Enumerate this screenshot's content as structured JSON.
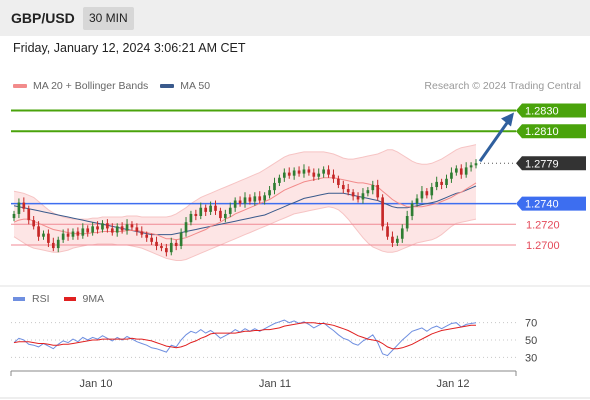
{
  "header": {
    "symbol": "GBP/USD",
    "interval": "30 MIN"
  },
  "datetime": "Friday, January 12, 2024 3:06:21 AM CET",
  "legend": {
    "ma_bb_label": "MA 20 + Bollinger Bands",
    "ma50_label": "MA 50",
    "credit": "Research © 2024 Trading Central"
  },
  "rsi_legend": {
    "rsi_label": "RSI",
    "ma_label": "9MA"
  },
  "colors": {
    "green": "#4aa30b",
    "blue": "#3d6ef0",
    "red": "#e44a5a",
    "bb_fill": "#fde5e5",
    "candle_up": "#2e7d32",
    "candle_down": "#c62828",
    "price_tag": "#333333",
    "ma50": "#3a5a8c",
    "rsi_line": "#6f8fe0",
    "rsi_ma": "#e02020",
    "arrow": "#2f5f9e"
  },
  "chart_data": [
    {
      "type": "candlestick",
      "x_ticks": [
        "Jan 10",
        "Jan 11",
        "Jan 12"
      ],
      "ylim": [
        1.267,
        1.2845
      ],
      "levels": [
        {
          "value": 1.283,
          "label": "1.2830",
          "kind": "resistance"
        },
        {
          "value": 1.281,
          "label": "1.2810",
          "kind": "resistance"
        },
        {
          "value": 1.2779,
          "label": "1.2779",
          "kind": "last"
        },
        {
          "value": 1.274,
          "label": "1.2740",
          "kind": "pivot"
        },
        {
          "value": 1.272,
          "label": "1.2720",
          "kind": "support"
        },
        {
          "value": 1.27,
          "label": "1.2700",
          "kind": "support"
        }
      ],
      "close": [
        1.273,
        1.2741,
        1.2735,
        1.2724,
        1.2718,
        1.2708,
        1.2711,
        1.2702,
        1.2697,
        1.2705,
        1.2711,
        1.2708,
        1.2713,
        1.2709,
        1.2716,
        1.2712,
        1.2718,
        1.2715,
        1.2721,
        1.2716,
        1.2712,
        1.2718,
        1.2714,
        1.272,
        1.2717,
        1.2713,
        1.271,
        1.2707,
        1.2703,
        1.2699,
        1.2697,
        1.2693,
        1.2702,
        1.2699,
        1.2712,
        1.2722,
        1.273,
        1.2728,
        1.2736,
        1.2732,
        1.2738,
        1.2733,
        1.2726,
        1.273,
        1.2736,
        1.2743,
        1.274,
        1.2746,
        1.2742,
        1.2747,
        1.2743,
        1.2748,
        1.2753,
        1.276,
        1.2765,
        1.277,
        1.2767,
        1.2772,
        1.2769,
        1.2773,
        1.277,
        1.2766,
        1.2769,
        1.2773,
        1.2768,
        1.2764,
        1.2758,
        1.2754,
        1.2751,
        1.2747,
        1.2744,
        1.275,
        1.2753,
        1.2758,
        1.2746,
        1.2718,
        1.2708,
        1.2702,
        1.2706,
        1.2716,
        1.2728,
        1.274,
        1.2745,
        1.2752,
        1.2748,
        1.2756,
        1.2761,
        1.2758,
        1.2764,
        1.277,
        1.2774,
        1.2768,
        1.2775,
        1.2777,
        1.2779
      ],
      "ma20": [
        1.2722,
        1.2724,
        1.2725,
        1.2725,
        1.2723,
        1.2721,
        1.2719,
        1.2717,
        1.2715,
        1.2714,
        1.2713,
        1.2712,
        1.2711,
        1.2711,
        1.2711,
        1.2711,
        1.2712,
        1.2712,
        1.2713,
        1.2713,
        1.2713,
        1.2713,
        1.2713,
        1.2714,
        1.2714,
        1.2714,
        1.2713,
        1.2712,
        1.2711,
        1.271,
        1.2708,
        1.2706,
        1.2706,
        1.2705,
        1.2706,
        1.2707,
        1.2709,
        1.2711,
        1.2713,
        1.2715,
        1.2718,
        1.272,
        1.2722,
        1.2725,
        1.2727,
        1.273,
        1.2732,
        1.2734,
        1.2736,
        1.2738,
        1.274,
        1.2742,
        1.2744,
        1.2747,
        1.275,
        1.2753,
        1.2755,
        1.2757,
        1.2759,
        1.2761,
        1.2762,
        1.2763,
        1.2764,
        1.2765,
        1.2765,
        1.2765,
        1.2764,
        1.2763,
        1.2762,
        1.2761,
        1.276,
        1.276,
        1.2759,
        1.2758,
        1.2756,
        1.2752,
        1.2748,
        1.2744,
        1.2741,
        1.2739,
        1.2737,
        1.2737,
        1.2737,
        1.2737,
        1.2738,
        1.2739,
        1.274,
        1.2742,
        1.2744,
        1.2746,
        1.2749,
        1.2751,
        1.2754,
        1.2757,
        1.276
      ],
      "ma50": [
        1.2738,
        1.2737,
        1.2736,
        1.2735,
        1.2734,
        1.2733,
        1.2732,
        1.2731,
        1.273,
        1.2729,
        1.2728,
        1.2727,
        1.2726,
        1.2725,
        1.2724,
        1.2723,
        1.2722,
        1.2721,
        1.272,
        1.2719,
        1.2718,
        1.2717,
        1.2716,
        1.2715,
        1.2714,
        1.2713,
        1.2712,
        1.2711,
        1.271,
        1.271,
        1.271,
        1.271,
        1.271,
        1.2711,
        1.2712,
        1.2713,
        1.2714,
        1.2715,
        1.2716,
        1.2717,
        1.2718,
        1.2719,
        1.272,
        1.2721,
        1.2722,
        1.2723,
        1.2724,
        1.2725,
        1.2726,
        1.2727,
        1.2728,
        1.2729,
        1.2731,
        1.2733,
        1.2735,
        1.2737,
        1.2739,
        1.2741,
        1.2743,
        1.2745,
        1.2746,
        1.2747,
        1.2748,
        1.2749,
        1.275,
        1.275,
        1.275,
        1.275,
        1.2749,
        1.2748,
        1.2747,
        1.2746,
        1.2745,
        1.2744,
        1.2743,
        1.2741,
        1.2739,
        1.2737,
        1.2736,
        1.2736,
        1.2736,
        1.2737,
        1.2738,
        1.2739,
        1.274,
        1.2741,
        1.2742,
        1.2744,
        1.2746,
        1.2748,
        1.275,
        1.2751,
        1.2753,
        1.2755,
        1.2757
      ],
      "bb_upper": [
        1.2752,
        1.2751,
        1.275,
        1.2748,
        1.2746,
        1.2742,
        1.2738,
        1.2734,
        1.2731,
        1.2729,
        1.2727,
        1.2726,
        1.2725,
        1.2725,
        1.2725,
        1.2725,
        1.2726,
        1.2726,
        1.2727,
        1.2727,
        1.2727,
        1.2727,
        1.2727,
        1.2728,
        1.2728,
        1.2728,
        1.2727,
        1.2727,
        1.2727,
        1.2727,
        1.2727,
        1.2727,
        1.2728,
        1.273,
        1.2733,
        1.2736,
        1.274,
        1.2743,
        1.2746,
        1.2748,
        1.275,
        1.2752,
        1.2754,
        1.2756,
        1.2758,
        1.276,
        1.2762,
        1.2764,
        1.2766,
        1.2768,
        1.277,
        1.2773,
        1.2776,
        1.2779,
        1.2782,
        1.2785,
        1.2787,
        1.2788,
        1.2789,
        1.279,
        1.279,
        1.279,
        1.279,
        1.279,
        1.2789,
        1.2788,
        1.2786,
        1.2784,
        1.2783,
        1.2783,
        1.2784,
        1.2785,
        1.2786,
        1.2787,
        1.2788,
        1.279,
        1.2792,
        1.2792,
        1.279,
        1.2787,
        1.2784,
        1.2781,
        1.2779,
        1.2778,
        1.2778,
        1.2779,
        1.2781,
        1.2783,
        1.2786,
        1.2789,
        1.2792,
        1.2794,
        1.2795,
        1.2796,
        1.2797
      ],
      "bb_lower": [
        1.2708,
        1.2705,
        1.2702,
        1.2699,
        1.2697,
        1.2696,
        1.2695,
        1.2694,
        1.2693,
        1.2693,
        1.2694,
        1.2695,
        1.2697,
        1.2698,
        1.2699,
        1.27,
        1.27,
        1.2701,
        1.2701,
        1.2701,
        1.2701,
        1.27,
        1.27,
        1.27,
        1.2699,
        1.2698,
        1.2697,
        1.2695,
        1.2693,
        1.2691,
        1.2689,
        1.2687,
        1.2686,
        1.2685,
        1.2685,
        1.2686,
        1.2688,
        1.269,
        1.2692,
        1.2694,
        1.2696,
        1.2698,
        1.27,
        1.2702,
        1.2704,
        1.2706,
        1.2708,
        1.271,
        1.2712,
        1.2714,
        1.2716,
        1.2718,
        1.272,
        1.2722,
        1.2724,
        1.2726,
        1.2728,
        1.273,
        1.2731,
        1.2732,
        1.2733,
        1.2734,
        1.2735,
        1.2736,
        1.2737,
        1.2736,
        1.2734,
        1.273,
        1.2725,
        1.2719,
        1.2713,
        1.2707,
        1.2702,
        1.2698,
        1.2696,
        1.2694,
        1.2693,
        1.2693,
        1.2694,
        1.2696,
        1.2698,
        1.27,
        1.2702,
        1.2703,
        1.2704,
        1.2705,
        1.2707,
        1.271,
        1.2714,
        1.2718,
        1.2721,
        1.2722,
        1.2723,
        1.2724,
        1.2725
      ],
      "projection": {
        "from": 1.2779,
        "to": 1.283
      }
    },
    {
      "type": "line",
      "name": "RSI",
      "ylim": [
        20,
        80
      ],
      "y_ticks": [
        70,
        50,
        30
      ],
      "rsi": [
        47,
        52,
        50,
        45,
        44,
        42,
        46,
        43,
        40,
        45,
        49,
        47,
        51,
        48,
        53,
        50,
        53,
        51,
        55,
        52,
        49,
        53,
        50,
        54,
        51,
        48,
        46,
        44,
        41,
        40,
        38,
        36,
        44,
        42,
        50,
        56,
        60,
        58,
        62,
        58,
        61,
        57,
        52,
        55,
        58,
        62,
        59,
        63,
        60,
        63,
        60,
        63,
        66,
        69,
        71,
        73,
        70,
        72,
        69,
        71,
        68,
        64,
        67,
        70,
        65,
        61,
        56,
        52,
        50,
        46,
        44,
        49,
        52,
        56,
        47,
        34,
        32,
        38,
        44,
        50,
        55,
        60,
        62,
        64,
        60,
        64,
        66,
        63,
        66,
        69,
        70,
        65,
        68,
        69,
        70
      ],
      "rsi_ma": [
        47,
        48,
        48,
        48,
        47,
        46,
        46,
        45,
        44,
        44,
        45,
        45,
        46,
        47,
        48,
        49,
        50,
        50,
        51,
        51,
        51,
        51,
        51,
        51,
        52,
        51,
        51,
        50,
        49,
        47,
        45,
        43,
        42,
        41,
        42,
        44,
        47,
        49,
        52,
        54,
        57,
        58,
        58,
        58,
        58,
        58,
        59,
        60,
        60,
        61,
        61,
        62,
        62,
        63,
        64,
        66,
        67,
        68,
        69,
        70,
        70,
        70,
        69,
        69,
        68,
        67,
        65,
        63,
        61,
        58,
        55,
        53,
        51,
        50,
        49,
        46,
        42,
        40,
        40,
        41,
        43,
        45,
        48,
        51,
        54,
        57,
        59,
        61,
        62,
        63,
        64,
        65,
        66,
        67,
        67
      ]
    }
  ]
}
